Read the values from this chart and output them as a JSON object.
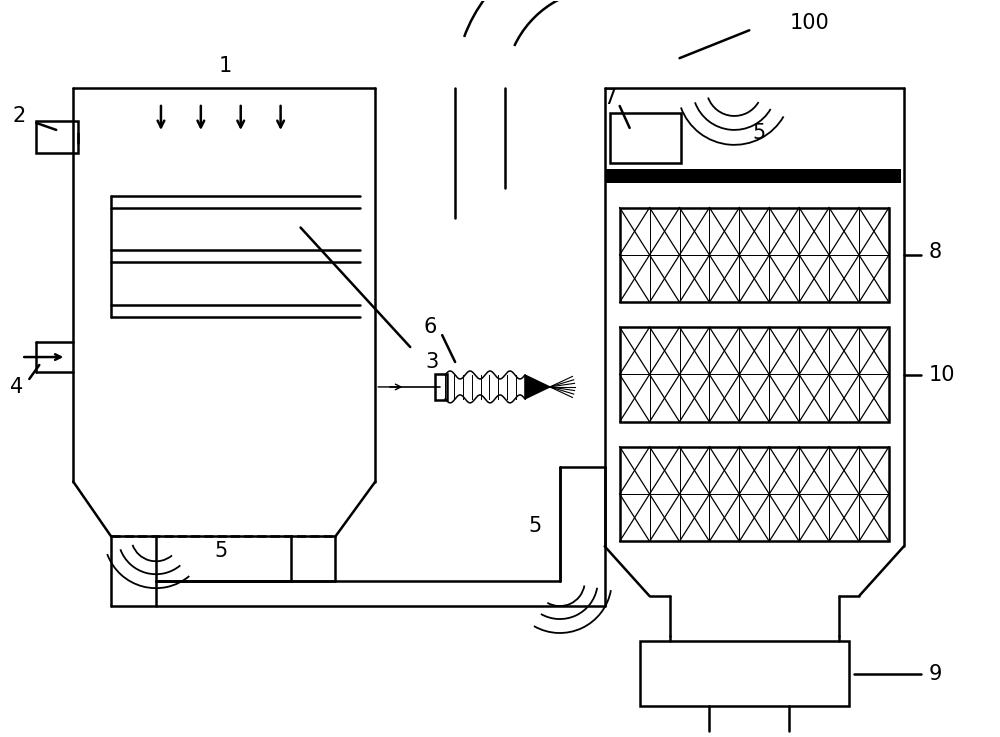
{
  "background": "#ffffff",
  "line_color": "#000000",
  "lw": 1.8,
  "label_fontsize": 15
}
